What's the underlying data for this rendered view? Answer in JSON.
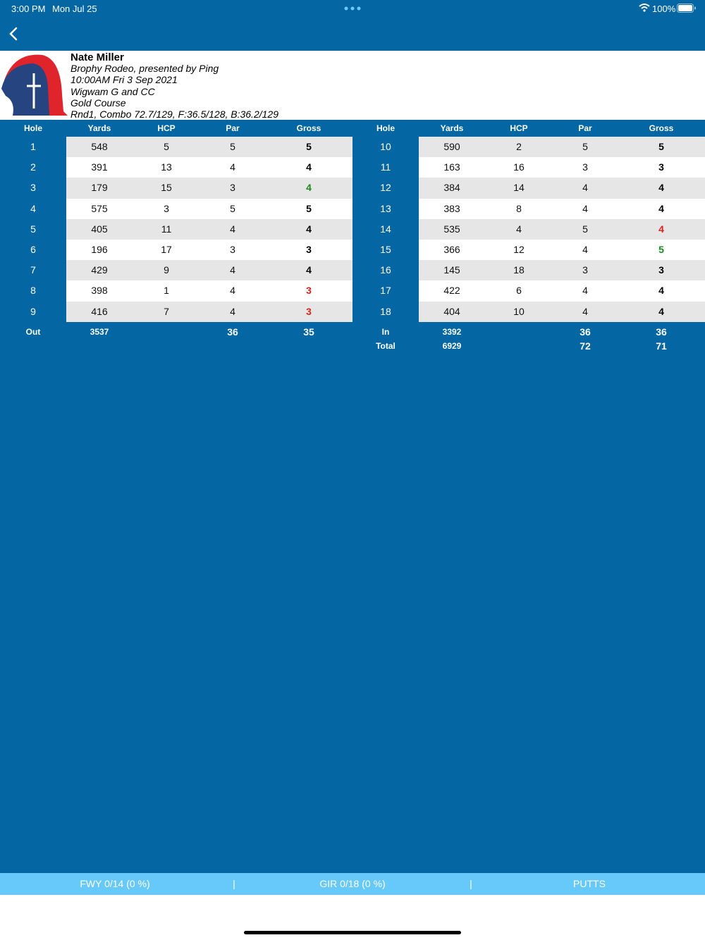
{
  "status_bar": {
    "time": "3:00 PM",
    "date": "Mon Jul 25",
    "battery": "100%"
  },
  "header": {
    "player": "Nate Miller",
    "event": "Brophy Rodeo, presented by Ping",
    "datetime": "10:00AM Fri 3 Sep 2021",
    "club": "Wigwam G and CC",
    "course": "Gold Course",
    "round": "Rnd1, Combo 72.7/129, F:36.5/128, B:36.2/129"
  },
  "columns": [
    "Hole",
    "Yards",
    "HCP",
    "Par",
    "Gross"
  ],
  "front": {
    "rows": [
      [
        1,
        548,
        5,
        5,
        5
      ],
      [
        2,
        391,
        13,
        4,
        4
      ],
      [
        3,
        179,
        15,
        3,
        4
      ],
      [
        4,
        575,
        3,
        5,
        5
      ],
      [
        5,
        405,
        11,
        4,
        4
      ],
      [
        6,
        196,
        17,
        3,
        3
      ],
      [
        7,
        429,
        9,
        4,
        4
      ],
      [
        8,
        398,
        1,
        4,
        3
      ],
      [
        9,
        416,
        7,
        4,
        3
      ]
    ],
    "totals": [
      {
        "label": "Out",
        "yards": 3537,
        "par": 36,
        "gross": 35
      }
    ]
  },
  "back": {
    "rows": [
      [
        10,
        590,
        2,
        5,
        5
      ],
      [
        11,
        163,
        16,
        3,
        3
      ],
      [
        12,
        384,
        14,
        4,
        4
      ],
      [
        13,
        383,
        8,
        4,
        4
      ],
      [
        14,
        535,
        4,
        5,
        4
      ],
      [
        15,
        366,
        12,
        4,
        5
      ],
      [
        16,
        145,
        18,
        3,
        3
      ],
      [
        17,
        422,
        6,
        4,
        4
      ],
      [
        18,
        404,
        10,
        4,
        4
      ]
    ],
    "totals": [
      {
        "label": "In",
        "yards": 3392,
        "par": 36,
        "gross": 36
      },
      {
        "label": "Total",
        "yards": 6929,
        "par": 72,
        "gross": 71
      }
    ]
  },
  "footer": [
    "FWY 0/14 (0 %)",
    "|",
    "GIR 0/18 (0 %)",
    "|",
    "PUTTS"
  ]
}
